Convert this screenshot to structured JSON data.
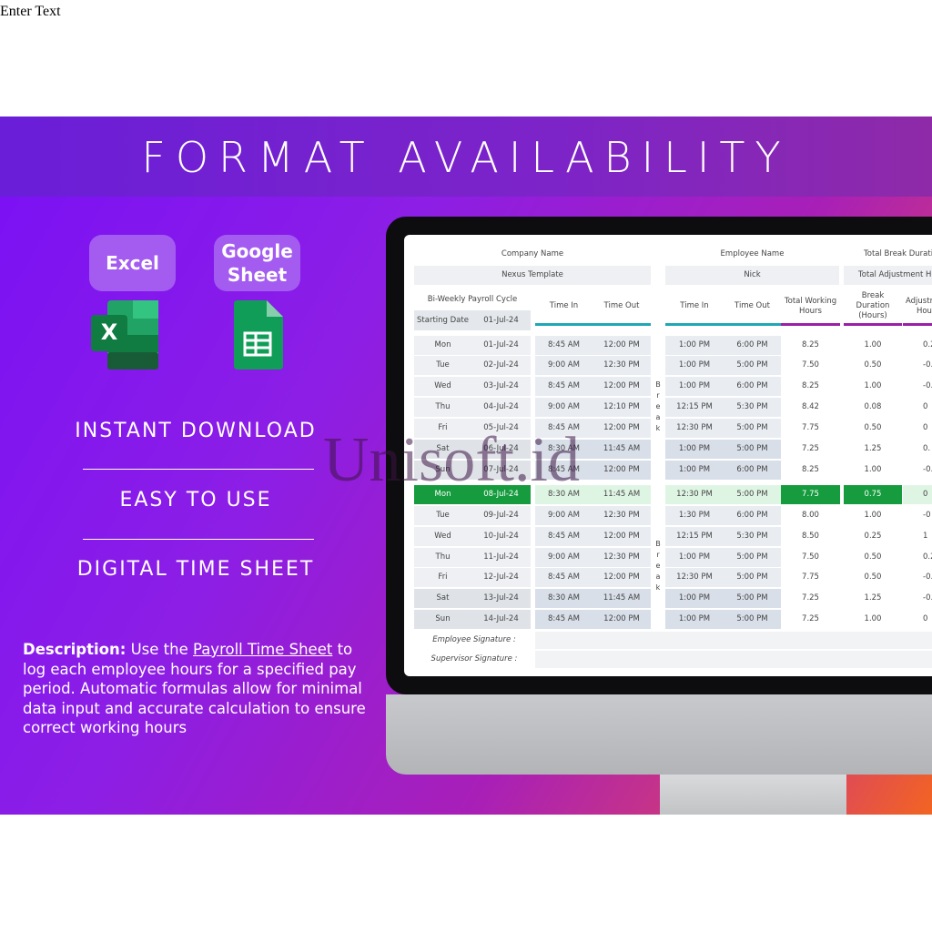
{
  "top_text": "Enter Text",
  "banner": {
    "title": "FORMAT AVAILABILITY",
    "badges": [
      "Excel",
      "Google Sheet"
    ],
    "features": [
      "INSTANT DOWNLOAD",
      "EASY TO USE",
      "DIGITAL TIME SHEET"
    ],
    "description": {
      "label": "Description:",
      "before": "Use the",
      "link": "Payroll Time Sheet",
      "after": "to log each employee hours for a specified pay period. Automatic formulas allow for minimal data input and accurate calculation to ensure correct working hours"
    },
    "watermark": "Unisoft.id"
  },
  "sheet": {
    "company_label": "Company Name",
    "company_value": "Nexus Template",
    "employee_label": "Employee Name",
    "employee_value": "Nick",
    "total_break_label": "Total Break Duration",
    "total_adjust_label": "Total Adjustment Hours",
    "cycle_label": "Bi-Weekly Payroll Cycle",
    "start_label": "Starting Date",
    "start_value": "01-Jul-24",
    "headers": [
      "Time In",
      "Time Out",
      "Time In",
      "Time Out",
      "Total Working Hours",
      "Break Duration (Hours)",
      "Adjustment Hours"
    ],
    "break_label": "Break",
    "highlight_row": 7,
    "rows": [
      [
        "Mon",
        "01-Jul-24",
        "8:45 AM",
        "12:00 PM",
        "1:00 PM",
        "6:00 PM",
        "8.25",
        "1.00",
        "0.2"
      ],
      [
        "Tue",
        "02-Jul-24",
        "9:00 AM",
        "12:30 PM",
        "1:00 PM",
        "5:00 PM",
        "7.50",
        "0.50",
        "-0."
      ],
      [
        "Wed",
        "03-Jul-24",
        "8:45 AM",
        "12:00 PM",
        "1:00 PM",
        "6:00 PM",
        "8.25",
        "1.00",
        "-0."
      ],
      [
        "Thu",
        "04-Jul-24",
        "9:00 AM",
        "12:10 PM",
        "12:15 PM",
        "5:30 PM",
        "8.42",
        "0.08",
        "0"
      ],
      [
        "Fri",
        "05-Jul-24",
        "8:45 AM",
        "12:00 PM",
        "12:30 PM",
        "5:00 PM",
        "7.75",
        "0.50",
        "0"
      ],
      [
        "Sat",
        "06-Jul-24",
        "8:30 AM",
        "11:45 AM",
        "1:00 PM",
        "5:00 PM",
        "7.25",
        "1.25",
        "0."
      ],
      [
        "Sun",
        "07-Jul-24",
        "8:45 AM",
        "12:00 PM",
        "1:00 PM",
        "6:00 PM",
        "8.25",
        "1.00",
        "-0."
      ],
      [
        "Mon",
        "08-Jul-24",
        "8:30 AM",
        "11:45 AM",
        "12:30 PM",
        "5:00 PM",
        "7.75",
        "0.75",
        "0"
      ],
      [
        "Tue",
        "09-Jul-24",
        "9:00 AM",
        "12:30 PM",
        "1:30 PM",
        "6:00 PM",
        "8.00",
        "1.00",
        "-0"
      ],
      [
        "Wed",
        "10-Jul-24",
        "8:45 AM",
        "12:00 PM",
        "12:15 PM",
        "5:30 PM",
        "8.50",
        "0.25",
        "1"
      ],
      [
        "Thu",
        "11-Jul-24",
        "9:00 AM",
        "12:30 PM",
        "1:00 PM",
        "5:00 PM",
        "7.50",
        "0.50",
        "0.2"
      ],
      [
        "Fri",
        "12-Jul-24",
        "8:45 AM",
        "12:00 PM",
        "12:30 PM",
        "5:00 PM",
        "7.75",
        "0.50",
        "-0."
      ],
      [
        "Sat",
        "13-Jul-24",
        "8:30 AM",
        "11:45 AM",
        "1:00 PM",
        "5:00 PM",
        "7.25",
        "1.25",
        "-0."
      ],
      [
        "Sun",
        "14-Jul-24",
        "8:45 AM",
        "12:00 PM",
        "1:00 PM",
        "5:00 PM",
        "7.25",
        "1.00",
        "0"
      ]
    ],
    "employee_signature": "Employee Signature :",
    "supervisor_signature": "Supervisor Signature :"
  }
}
